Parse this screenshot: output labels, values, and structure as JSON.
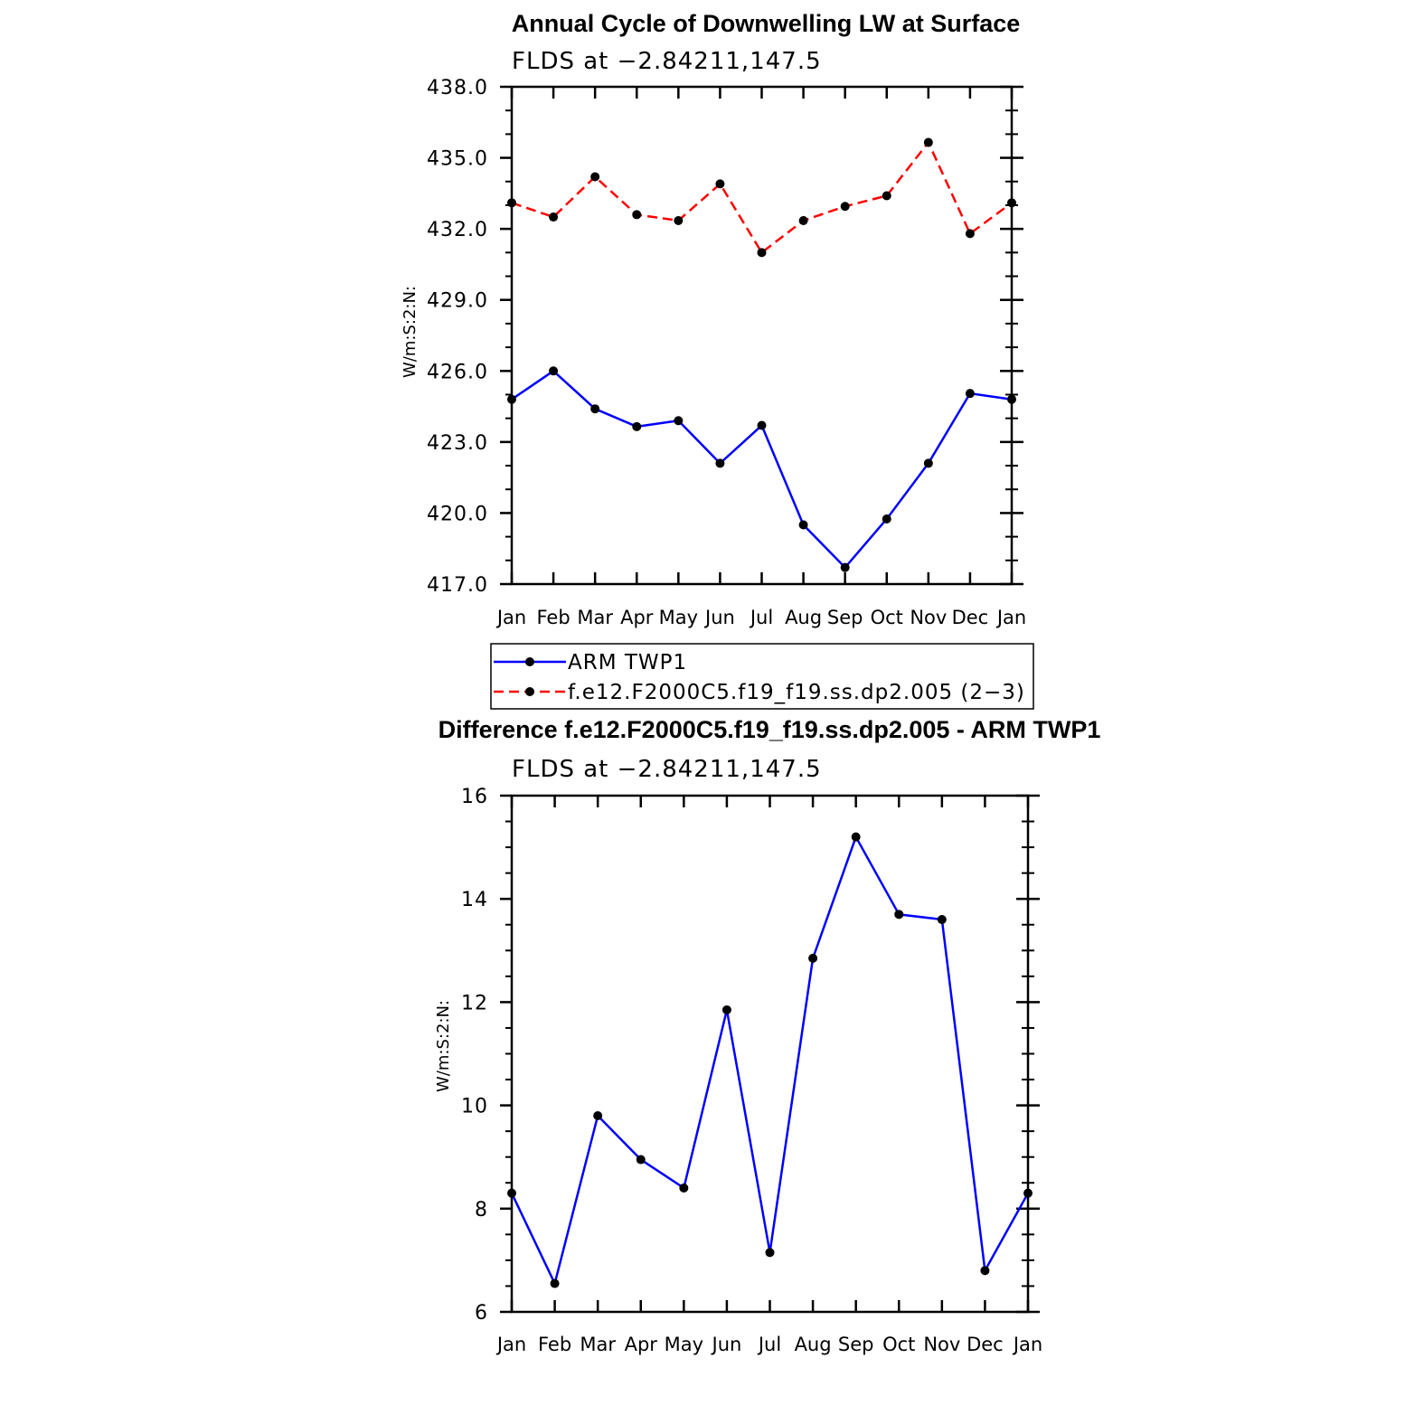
{
  "colors": {
    "obs": "#0000ff",
    "model": "#ff0000",
    "marker": "#000000",
    "axis": "#000000"
  },
  "chart_data": [
    {
      "id": "top",
      "type": "line",
      "title": "Annual Cycle of Downwelling LW at Surface",
      "subtitle": "FLDS at −2.84211,147.5",
      "ylabel": "W/m:S:2:N:",
      "xlabel": "",
      "categories": [
        "Jan",
        "Feb",
        "Mar",
        "Apr",
        "May",
        "Jun",
        "Jul",
        "Aug",
        "Sep",
        "Oct",
        "Nov",
        "Dec",
        "Jan"
      ],
      "ylim": [
        417.0,
        438.0
      ],
      "yticks": [
        417.0,
        420.0,
        423.0,
        426.0,
        429.0,
        432.0,
        435.0,
        438.0
      ],
      "ytick_labels": [
        "417.0",
        "420.0",
        "423.0",
        "426.0",
        "429.0",
        "432.0",
        "435.0",
        "438.0"
      ],
      "yminor_step": 1.0,
      "series": [
        {
          "name": "ARM TWP1",
          "style": "solid",
          "color_key": "obs",
          "values": [
            424.8,
            426.0,
            424.4,
            423.65,
            423.9,
            422.1,
            423.7,
            419.5,
            417.7,
            419.75,
            422.1,
            425.05,
            424.8
          ]
        },
        {
          "name": "f.e12.F2000C5.f19_f19.ss.dp2.005 (2−3)",
          "style": "dashed",
          "color_key": "model",
          "values": [
            433.1,
            432.5,
            434.2,
            432.6,
            432.35,
            433.9,
            431.0,
            432.35,
            432.95,
            433.4,
            435.65,
            431.8,
            433.1
          ]
        }
      ],
      "legend": {
        "position": "below",
        "entries": [
          "ARM TWP1",
          "f.e12.F2000C5.f19_f19.ss.dp2.005 (2−3)"
        ]
      }
    },
    {
      "id": "bottom",
      "type": "line",
      "title": "Difference f.e12.F2000C5.f19_f19.ss.dp2.005 - ARM TWP1",
      "subtitle": "FLDS at −2.84211,147.5",
      "ylabel": "W/m:S:2:N:",
      "xlabel": "",
      "categories": [
        "Jan",
        "Feb",
        "Mar",
        "Apr",
        "May",
        "Jun",
        "Jul",
        "Aug",
        "Sep",
        "Oct",
        "Nov",
        "Dec",
        "Jan"
      ],
      "ylim": [
        6,
        16
      ],
      "yticks": [
        6,
        8,
        10,
        12,
        14,
        16
      ],
      "ytick_labels": [
        "6",
        "8",
        "10",
        "12",
        "14",
        "16"
      ],
      "yminor_step": 0.5,
      "series": [
        {
          "name": "Difference",
          "style": "solid",
          "color_key": "obs",
          "values": [
            8.3,
            6.55,
            9.8,
            8.95,
            8.4,
            11.85,
            7.15,
            12.85,
            15.2,
            13.7,
            13.6,
            6.8,
            8.3
          ]
        }
      ]
    }
  ]
}
